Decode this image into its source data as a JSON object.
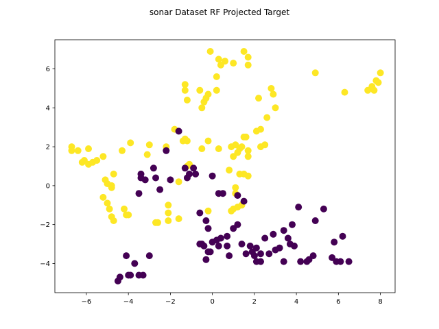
{
  "chart_data": {
    "type": "scatter",
    "title": "sonar Dataset RF Projected Target",
    "xlabel": "",
    "ylabel": "",
    "xlim": [
      -7.5,
      8.7
    ],
    "ylim": [
      -5.5,
      7.5
    ],
    "xticks": [
      -6,
      -4,
      -2,
      0,
      2,
      4,
      6,
      8
    ],
    "yticks": [
      -4,
      -2,
      0,
      2,
      4,
      6
    ],
    "xtick_labels": [
      "−6",
      "−4",
      "−2",
      "0",
      "2",
      "4",
      "6",
      "8"
    ],
    "ytick_labels": [
      "−4",
      "−2",
      "0",
      "2",
      "4",
      "6"
    ],
    "grid": false,
    "legend": false,
    "colors": {
      "class_1": "#fde725",
      "class_0": "#440154"
    },
    "series": [
      {
        "color": "#fde725",
        "points": [
          [
            -6.7,
            2.0
          ],
          [
            -6.7,
            1.8
          ],
          [
            -6.4,
            1.8
          ],
          [
            -6.2,
            1.2
          ],
          [
            -6.1,
            1.3
          ],
          [
            -5.9,
            1.9
          ],
          [
            -5.9,
            1.1
          ],
          [
            -5.7,
            1.2
          ],
          [
            -5.5,
            1.3
          ],
          [
            -5.2,
            1.5
          ],
          [
            -5.1,
            0.3
          ],
          [
            -5.0,
            0.1
          ],
          [
            -4.8,
            -0.1
          ],
          [
            -4.7,
            0.6
          ],
          [
            -4.8,
            -0.0
          ],
          [
            -5.2,
            -0.6
          ],
          [
            -5.0,
            -0.9
          ],
          [
            -4.9,
            -1.2
          ],
          [
            -4.8,
            -1.6
          ],
          [
            -4.7,
            -1.8
          ],
          [
            -4.3,
            1.8
          ],
          [
            -3.9,
            2.2
          ],
          [
            -4.2,
            -1.2
          ],
          [
            -4.1,
            -1.5
          ],
          [
            -4.0,
            -1.5
          ],
          [
            -3.1,
            1.6
          ],
          [
            -3.0,
            2.1
          ],
          [
            -2.7,
            -1.9
          ],
          [
            -2.6,
            -1.9
          ],
          [
            -2.2,
            2.0
          ],
          [
            -2.1,
            -1.0
          ],
          [
            -2.1,
            -1.4
          ],
          [
            -2.1,
            -1.8
          ],
          [
            -1.8,
            2.9
          ],
          [
            -1.6,
            0.2
          ],
          [
            -1.6,
            -1.7
          ],
          [
            -1.4,
            2.3
          ],
          [
            -1.3,
            2.4
          ],
          [
            -1.2,
            2.3
          ],
          [
            -1.2,
            1.0
          ],
          [
            -1.1,
            1.1
          ],
          [
            -1.3,
            5.2
          ],
          [
            -1.3,
            4.9
          ],
          [
            -1.2,
            4.4
          ],
          [
            -0.6,
            4.9
          ],
          [
            -0.5,
            4.0
          ],
          [
            -0.4,
            4.3
          ],
          [
            -0.3,
            4.5
          ],
          [
            -0.2,
            4.7
          ],
          [
            -0.5,
            1.9
          ],
          [
            -0.2,
            2.3
          ],
          [
            0.2,
            4.9
          ],
          [
            0.2,
            5.6
          ],
          [
            -0.1,
            6.9
          ],
          [
            0.3,
            6.5
          ],
          [
            0.4,
            6.2
          ],
          [
            0.6,
            6.4
          ],
          [
            1.0,
            6.3
          ],
          [
            1.5,
            6.9
          ],
          [
            1.7,
            6.6
          ],
          [
            1.7,
            6.2
          ],
          [
            0.3,
            1.9
          ],
          [
            0.8,
            0.8
          ],
          [
            0.9,
            2.0
          ],
          [
            1.0,
            1.5
          ],
          [
            1.1,
            2.1
          ],
          [
            1.2,
            1.7
          ],
          [
            1.3,
            1.9
          ],
          [
            1.4,
            2.0
          ],
          [
            1.5,
            2.5
          ],
          [
            1.6,
            2.5
          ],
          [
            1.7,
            1.8
          ],
          [
            1.7,
            1.5
          ],
          [
            1.3,
            0.6
          ],
          [
            1.5,
            0.6
          ],
          [
            1.7,
            0.5
          ],
          [
            1.1,
            -0.1
          ],
          [
            1.1,
            -0.4
          ],
          [
            1.0,
            -1.2
          ],
          [
            1.2,
            -1.1
          ],
          [
            1.4,
            -1.0
          ],
          [
            0.9,
            -1.3
          ],
          [
            -0.2,
            -1.3
          ],
          [
            2.1,
            2.8
          ],
          [
            2.3,
            2.9
          ],
          [
            2.3,
            2.0
          ],
          [
            2.5,
            2.1
          ],
          [
            2.2,
            4.5
          ],
          [
            2.6,
            3.5
          ],
          [
            2.8,
            5.0
          ],
          [
            2.9,
            4.7
          ],
          [
            3.0,
            4.0
          ],
          [
            4.9,
            5.8
          ],
          [
            6.3,
            4.8
          ],
          [
            7.4,
            4.9
          ],
          [
            7.6,
            5.1
          ],
          [
            7.7,
            4.9
          ],
          [
            7.8,
            5.4
          ],
          [
            8.0,
            5.8
          ],
          [
            7.9,
            5.3
          ]
        ]
      },
      {
        "color": "#440154",
        "points": [
          [
            -4.5,
            -4.9
          ],
          [
            -4.4,
            -4.7
          ],
          [
            -4.1,
            -3.6
          ],
          [
            -4.0,
            -4.6
          ],
          [
            -3.9,
            -4.6
          ],
          [
            -3.7,
            -4.0
          ],
          [
            -3.5,
            -4.6
          ],
          [
            -3.3,
            -4.6
          ],
          [
            -3.0,
            -3.6
          ],
          [
            -3.5,
            -0.4
          ],
          [
            -3.4,
            0.6
          ],
          [
            -3.4,
            0.4
          ],
          [
            -3.2,
            0.3
          ],
          [
            -2.8,
            0.9
          ],
          [
            -2.7,
            0.4
          ],
          [
            -2.5,
            -0.2
          ],
          [
            -2.2,
            1.8
          ],
          [
            -2.0,
            0.3
          ],
          [
            -1.6,
            2.8
          ],
          [
            -1.3,
            0.9
          ],
          [
            -1.2,
            0.4
          ],
          [
            -1.1,
            0.6
          ],
          [
            -0.9,
            0.9
          ],
          [
            -0.8,
            0.6
          ],
          [
            -0.6,
            -1.4
          ],
          [
            -0.3,
            -1.8
          ],
          [
            -0.2,
            -2.2
          ],
          [
            -0.5,
            -3.0
          ],
          [
            -0.4,
            -3.1
          ],
          [
            -0.3,
            -3.8
          ],
          [
            -0.1,
            -3.4
          ],
          [
            0.0,
            -2.9
          ],
          [
            0.2,
            -2.8
          ],
          [
            0.3,
            -3.1
          ],
          [
            0.4,
            -2.7
          ],
          [
            0.7,
            -2.6
          ],
          [
            0.8,
            -3.6
          ],
          [
            1.0,
            -2.2
          ],
          [
            1.2,
            -2.0
          ],
          [
            1.4,
            -3.0
          ],
          [
            1.6,
            -3.5
          ],
          [
            1.8,
            -3.1
          ],
          [
            1.9,
            -3.4
          ],
          [
            2.0,
            -3.6
          ],
          [
            2.1,
            -3.9
          ],
          [
            2.1,
            -3.2
          ],
          [
            2.3,
            -3.5
          ],
          [
            2.3,
            -3.9
          ],
          [
            2.5,
            -2.7
          ],
          [
            2.7,
            -3.5
          ],
          [
            2.9,
            -2.5
          ],
          [
            3.0,
            -3.3
          ],
          [
            3.2,
            -3.2
          ],
          [
            3.4,
            -3.9
          ],
          [
            3.4,
            -2.3
          ],
          [
            3.6,
            -2.7
          ],
          [
            3.7,
            -3.0
          ],
          [
            3.9,
            -3.1
          ],
          [
            3.8,
            -2.0
          ],
          [
            4.1,
            -1.1
          ],
          [
            4.2,
            -3.9
          ],
          [
            4.5,
            -3.9
          ],
          [
            4.6,
            -3.8
          ],
          [
            4.8,
            -3.6
          ],
          [
            4.9,
            -1.8
          ],
          [
            5.3,
            -1.2
          ],
          [
            5.7,
            -3.7
          ],
          [
            5.8,
            -2.9
          ],
          [
            5.9,
            -3.9
          ],
          [
            6.1,
            -3.9
          ],
          [
            6.2,
            -2.6
          ],
          [
            6.5,
            -3.9
          ],
          [
            0.3,
            -0.4
          ],
          [
            0.5,
            -0.4
          ],
          [
            0.0,
            0.5
          ],
          [
            1.2,
            -0.5
          ],
          [
            1.5,
            -0.8
          ],
          [
            -0.6,
            -3.0
          ],
          [
            -0.2,
            -3.4
          ],
          [
            0.7,
            -3.1
          ]
        ]
      }
    ]
  }
}
